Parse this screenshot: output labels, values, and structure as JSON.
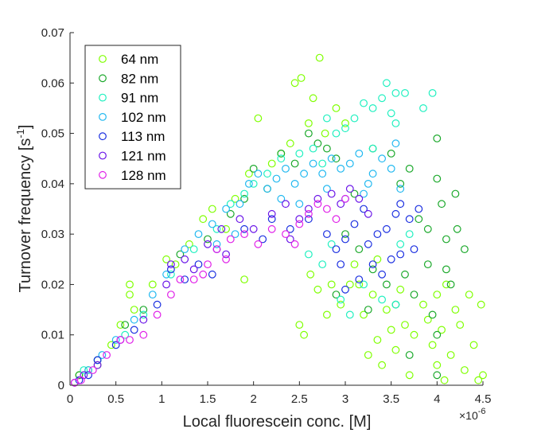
{
  "chart_data": {
    "type": "scatter",
    "title": "",
    "xlabel": "Local fluorescein conc. [M]",
    "ylabel": "Turnover frequency [s^-1]",
    "ylabel_main": "Turnover frequency [s",
    "ylabel_sup": "-1",
    "ylabel_close": "]",
    "x_multiplier_label": "×10",
    "x_multiplier_exp": "-6",
    "xlim": [
      0,
      4.5
    ],
    "ylim": [
      0,
      0.07
    ],
    "xticks": [
      0,
      0.5,
      1,
      1.5,
      2,
      2.5,
      3,
      3.5,
      4,
      4.5
    ],
    "xtick_labels": [
      "0",
      "0.5",
      "1",
      "1.5",
      "2",
      "2.5",
      "3",
      "3.5",
      "4",
      "4.5"
    ],
    "yticks": [
      0,
      0.01,
      0.02,
      0.03,
      0.04,
      0.05,
      0.06,
      0.07
    ],
    "ytick_labels": [
      "0",
      "0.01",
      "0.02",
      "0.03",
      "0.04",
      "0.05",
      "0.06",
      "0.07"
    ],
    "grid": false,
    "legend_position": "top-left",
    "marker": "open-circle",
    "series": [
      {
        "name": "64 nm",
        "color": "#7fff00",
        "points": [
          [
            0.1,
            0.002
          ],
          [
            0.2,
            0.003
          ],
          [
            0.3,
            0.004
          ],
          [
            0.45,
            0.008
          ],
          [
            0.55,
            0.012
          ],
          [
            0.65,
            0.018
          ],
          [
            0.65,
            0.02
          ],
          [
            0.7,
            0.015
          ],
          [
            0.9,
            0.02
          ],
          [
            1.05,
            0.025
          ],
          [
            1.15,
            0.024
          ],
          [
            1.3,
            0.028
          ],
          [
            1.45,
            0.033
          ],
          [
            1.55,
            0.035
          ],
          [
            1.7,
            0.031
          ],
          [
            1.8,
            0.037
          ],
          [
            1.9,
            0.021
          ],
          [
            1.95,
            0.042
          ],
          [
            2.05,
            0.053
          ],
          [
            2.2,
            0.044
          ],
          [
            2.3,
            0.046
          ],
          [
            2.4,
            0.048
          ],
          [
            2.45,
            0.06
          ],
          [
            2.52,
            0.061
          ],
          [
            2.6,
            0.052
          ],
          [
            2.65,
            0.057
          ],
          [
            2.72,
            0.065
          ],
          [
            2.78,
            0.05
          ],
          [
            2.9,
            0.055
          ],
          [
            3.0,
            0.052
          ],
          [
            2.5,
            0.012
          ],
          [
            2.55,
            0.01
          ],
          [
            2.62,
            0.022
          ],
          [
            2.7,
            0.019
          ],
          [
            2.8,
            0.014
          ],
          [
            2.85,
            0.02
          ],
          [
            2.95,
            0.016
          ],
          [
            3.05,
            0.02
          ],
          [
            3.15,
            0.02
          ],
          [
            3.2,
            0.014
          ],
          [
            3.25,
            0.006
          ],
          [
            3.3,
            0.018
          ],
          [
            3.35,
            0.009
          ],
          [
            3.4,
            0.004
          ],
          [
            3.45,
            0.015
          ],
          [
            3.5,
            0.011
          ],
          [
            3.55,
            0.007
          ],
          [
            3.6,
            0.019
          ],
          [
            3.65,
            0.012
          ],
          [
            3.7,
            0.002
          ],
          [
            3.75,
            0.01
          ],
          [
            3.85,
            0.016
          ],
          [
            3.9,
            0.013
          ],
          [
            3.95,
            0.008
          ],
          [
            4.0,
            0.004
          ],
          [
            4.0,
            0.018
          ],
          [
            4.05,
            0.011
          ],
          [
            4.08,
            0.001
          ],
          [
            4.1,
            0.02
          ],
          [
            4.15,
            0.006
          ],
          [
            4.2,
            0.015
          ],
          [
            4.25,
            0.012
          ],
          [
            4.3,
            0.003
          ],
          [
            4.35,
            0.018
          ],
          [
            4.4,
            0.008
          ],
          [
            4.45,
            0.001
          ],
          [
            4.48,
            0.016
          ],
          [
            4.5,
            0.002
          ],
          [
            3.35,
            0.025
          ],
          [
            3.1,
            0.024
          ]
        ]
      },
      {
        "name": "82 nm",
        "color": "#1aa82a",
        "points": [
          [
            0.1,
            0.002
          ],
          [
            0.3,
            0.005
          ],
          [
            0.6,
            0.012
          ],
          [
            0.8,
            0.015
          ],
          [
            1.2,
            0.026
          ],
          [
            1.5,
            0.029
          ],
          [
            1.75,
            0.034
          ],
          [
            1.9,
            0.037
          ],
          [
            2.0,
            0.043
          ],
          [
            2.15,
            0.039
          ],
          [
            2.3,
            0.046
          ],
          [
            2.45,
            0.044
          ],
          [
            2.6,
            0.05
          ],
          [
            2.7,
            0.048
          ],
          [
            2.8,
            0.047
          ],
          [
            2.9,
            0.045
          ],
          [
            3.1,
            0.038
          ],
          [
            3.3,
            0.047
          ],
          [
            3.5,
            0.046
          ],
          [
            3.6,
            0.04
          ],
          [
            3.7,
            0.043
          ],
          [
            3.8,
            0.033
          ],
          [
            3.9,
            0.031
          ],
          [
            4.0,
            0.049
          ],
          [
            4.0,
            0.041
          ],
          [
            4.05,
            0.036
          ],
          [
            4.1,
            0.029
          ],
          [
            4.2,
            0.038
          ],
          [
            4.22,
            0.031
          ],
          [
            4.3,
            0.027
          ],
          [
            3.0,
            0.03
          ],
          [
            3.15,
            0.027
          ],
          [
            3.3,
            0.023
          ],
          [
            3.45,
            0.02
          ],
          [
            3.55,
            0.016
          ],
          [
            3.65,
            0.022
          ],
          [
            3.75,
            0.018
          ],
          [
            3.9,
            0.024
          ],
          [
            3.95,
            0.014
          ],
          [
            4.0,
            0.01
          ],
          [
            4.1,
            0.023
          ],
          [
            4.15,
            0.02
          ],
          [
            4.0,
            0.002
          ],
          [
            3.7,
            0.006
          ],
          [
            3.25,
            0.015
          ],
          [
            2.9,
            0.018
          ]
        ]
      },
      {
        "name": "91 nm",
        "color": "#20f0c0",
        "points": [
          [
            0.15,
            0.003
          ],
          [
            0.3,
            0.005
          ],
          [
            0.6,
            0.01
          ],
          [
            0.8,
            0.014
          ],
          [
            1.1,
            0.022
          ],
          [
            1.35,
            0.027
          ],
          [
            1.6,
            0.031
          ],
          [
            1.75,
            0.036
          ],
          [
            1.9,
            0.038
          ],
          [
            2.0,
            0.04
          ],
          [
            2.15,
            0.042
          ],
          [
            2.3,
            0.045
          ],
          [
            2.5,
            0.046
          ],
          [
            2.65,
            0.047
          ],
          [
            2.75,
            0.044
          ],
          [
            2.9,
            0.05
          ],
          [
            3.0,
            0.051
          ],
          [
            3.1,
            0.053
          ],
          [
            3.2,
            0.056
          ],
          [
            3.3,
            0.055
          ],
          [
            3.4,
            0.057
          ],
          [
            3.45,
            0.06
          ],
          [
            3.5,
            0.054
          ],
          [
            3.55,
            0.058
          ],
          [
            3.65,
            0.058
          ],
          [
            3.85,
            0.055
          ],
          [
            3.95,
            0.058
          ],
          [
            3.3,
            0.047
          ],
          [
            3.55,
            0.052
          ],
          [
            2.8,
            0.053
          ],
          [
            2.6,
            0.026
          ],
          [
            2.75,
            0.024
          ],
          [
            2.95,
            0.017
          ],
          [
            3.2,
            0.02
          ],
          [
            3.4,
            0.017
          ],
          [
            3.55,
            0.016
          ],
          [
            3.6,
            0.028
          ],
          [
            3.7,
            0.03
          ],
          [
            3.05,
            0.014
          ],
          [
            2.85,
            0.028
          ]
        ]
      },
      {
        "name": "102 nm",
        "color": "#20b8f0",
        "points": [
          [
            0.2,
            0.003
          ],
          [
            0.35,
            0.006
          ],
          [
            0.5,
            0.009
          ],
          [
            0.7,
            0.013
          ],
          [
            0.9,
            0.018
          ],
          [
            1.05,
            0.022
          ],
          [
            1.25,
            0.027
          ],
          [
            1.4,
            0.03
          ],
          [
            1.55,
            0.032
          ],
          [
            1.7,
            0.035
          ],
          [
            1.85,
            0.036
          ],
          [
            1.95,
            0.04
          ],
          [
            2.05,
            0.042
          ],
          [
            2.15,
            0.039
          ],
          [
            2.25,
            0.041
          ],
          [
            2.35,
            0.043
          ],
          [
            2.45,
            0.04
          ],
          [
            2.55,
            0.042
          ],
          [
            2.65,
            0.044
          ],
          [
            2.75,
            0.042
          ],
          [
            2.85,
            0.045
          ],
          [
            2.95,
            0.043
          ],
          [
            3.05,
            0.044
          ],
          [
            3.15,
            0.046
          ],
          [
            3.25,
            0.04
          ],
          [
            3.3,
            0.042
          ],
          [
            3.4,
            0.045
          ],
          [
            3.5,
            0.043
          ],
          [
            3.55,
            0.048
          ],
          [
            3.6,
            0.039
          ],
          [
            2.3,
            0.037
          ],
          [
            2.5,
            0.036
          ],
          [
            2.8,
            0.039
          ],
          [
            3.0,
            0.037
          ],
          [
            3.2,
            0.038
          ],
          [
            1.8,
            0.03
          ],
          [
            1.6,
            0.028
          ]
        ]
      },
      {
        "name": "113 nm",
        "color": "#1a2ee0",
        "points": [
          [
            0.1,
            0.001
          ],
          [
            0.2,
            0.002
          ],
          [
            0.3,
            0.005
          ],
          [
            0.5,
            0.008
          ],
          [
            0.7,
            0.011
          ],
          [
            0.95,
            0.016
          ],
          [
            1.1,
            0.023
          ],
          [
            1.25,
            0.021
          ],
          [
            1.4,
            0.024
          ],
          [
            1.6,
            0.027
          ],
          [
            1.9,
            0.031
          ],
          [
            2.1,
            0.029
          ],
          [
            2.2,
            0.033
          ],
          [
            2.4,
            0.031
          ],
          [
            2.6,
            0.033
          ],
          [
            2.8,
            0.03
          ],
          [
            2.9,
            0.027
          ],
          [
            3.0,
            0.029
          ],
          [
            3.1,
            0.032
          ],
          [
            3.2,
            0.035
          ],
          [
            3.25,
            0.028
          ],
          [
            3.35,
            0.03
          ],
          [
            3.45,
            0.031
          ],
          [
            3.55,
            0.034
          ],
          [
            3.6,
            0.036
          ],
          [
            3.7,
            0.033
          ],
          [
            3.8,
            0.035
          ],
          [
            3.3,
            0.024
          ],
          [
            3.4,
            0.022
          ],
          [
            3.5,
            0.025
          ],
          [
            3.15,
            0.021
          ],
          [
            2.95,
            0.024
          ],
          [
            3.6,
            0.026
          ],
          [
            3.75,
            0.027
          ],
          [
            3.0,
            0.019
          ],
          [
            1.55,
            0.022
          ]
        ]
      },
      {
        "name": "121 nm",
        "color": "#6a14e8",
        "points": [
          [
            0.05,
            0.0005
          ],
          [
            0.15,
            0.002
          ],
          [
            0.3,
            0.004
          ],
          [
            0.55,
            0.009
          ],
          [
            0.8,
            0.013
          ],
          [
            1.05,
            0.02
          ],
          [
            1.25,
            0.025
          ],
          [
            1.35,
            0.023
          ],
          [
            1.5,
            0.028
          ],
          [
            1.65,
            0.031
          ],
          [
            1.85,
            0.033
          ],
          [
            2.0,
            0.031
          ],
          [
            2.2,
            0.034
          ],
          [
            2.35,
            0.036
          ],
          [
            2.5,
            0.033
          ],
          [
            2.6,
            0.035
          ],
          [
            2.7,
            0.037
          ],
          [
            2.85,
            0.038
          ],
          [
            2.95,
            0.036
          ],
          [
            3.05,
            0.039
          ],
          [
            3.15,
            0.037
          ],
          [
            3.25,
            0.034
          ],
          [
            2.4,
            0.029
          ],
          [
            1.7,
            0.026
          ],
          [
            1.1,
            0.024
          ]
        ]
      },
      {
        "name": "128 nm",
        "color": "#e020e8",
        "points": [
          [
            0.05,
            0.0005
          ],
          [
            0.12,
            0.001
          ],
          [
            0.25,
            0.003
          ],
          [
            0.4,
            0.006
          ],
          [
            0.55,
            0.009
          ],
          [
            0.65,
            0.009
          ],
          [
            0.8,
            0.01
          ],
          [
            0.95,
            0.014
          ],
          [
            1.1,
            0.018
          ],
          [
            1.2,
            0.021
          ],
          [
            1.35,
            0.021
          ],
          [
            1.5,
            0.024
          ],
          [
            1.6,
            0.027
          ],
          [
            1.75,
            0.029
          ],
          [
            1.9,
            0.03
          ],
          [
            2.05,
            0.028
          ],
          [
            2.2,
            0.031
          ],
          [
            2.35,
            0.03
          ],
          [
            2.5,
            0.032
          ],
          [
            2.6,
            0.034
          ],
          [
            2.7,
            0.036
          ],
          [
            2.8,
            0.035
          ],
          [
            2.9,
            0.033
          ],
          [
            3.0,
            0.037
          ],
          [
            2.45,
            0.028
          ],
          [
            1.45,
            0.022
          ],
          [
            1.7,
            0.025
          ]
        ]
      }
    ]
  }
}
